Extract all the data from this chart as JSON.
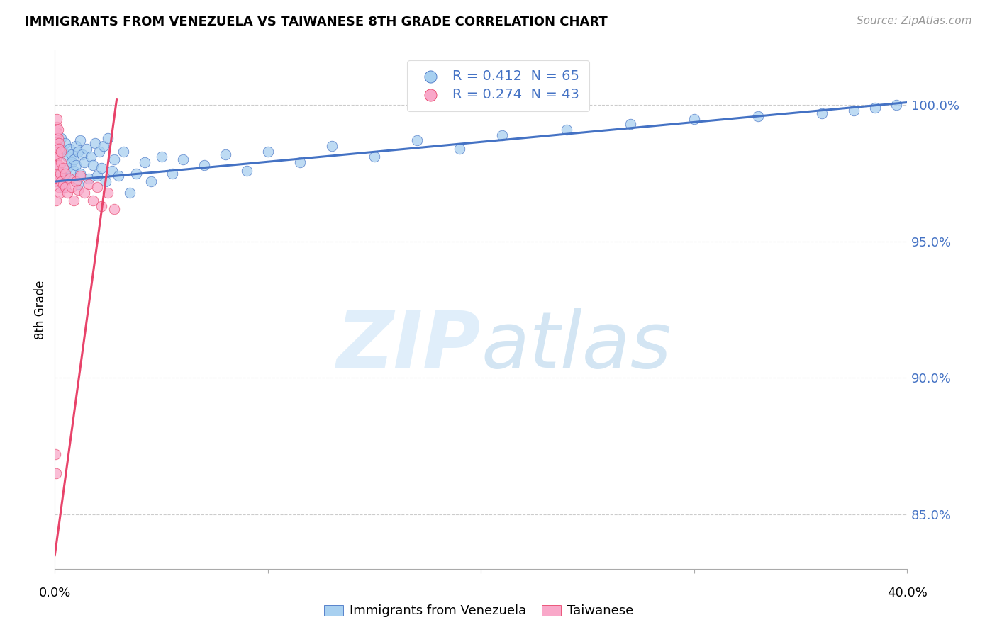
{
  "title": "IMMIGRANTS FROM VENEZUELA VS TAIWANESE 8TH GRADE CORRELATION CHART",
  "source": "Source: ZipAtlas.com",
  "ylabel": "8th Grade",
  "yticks": [
    85.0,
    90.0,
    95.0,
    100.0
  ],
  "ytick_labels": [
    "85.0%",
    "90.0%",
    "95.0%",
    "100.0%"
  ],
  "xlim": [
    0.0,
    0.4
  ],
  "ylim": [
    83.0,
    102.0
  ],
  "blue_r": 0.412,
  "blue_n": 65,
  "pink_r": 0.274,
  "pink_n": 43,
  "blue_color": "#A8D0F0",
  "pink_color": "#F9A8C9",
  "blue_line_color": "#4472C4",
  "pink_line_color": "#E8436A",
  "legend_label_blue": "Immigrants from Venezuela",
  "legend_label_pink": "Taiwanese",
  "blue_scatter_x": [
    0.001,
    0.002,
    0.002,
    0.003,
    0.003,
    0.004,
    0.004,
    0.005,
    0.005,
    0.006,
    0.006,
    0.007,
    0.007,
    0.008,
    0.008,
    0.009,
    0.009,
    0.01,
    0.01,
    0.011,
    0.011,
    0.012,
    0.012,
    0.013,
    0.014,
    0.015,
    0.016,
    0.017,
    0.018,
    0.019,
    0.02,
    0.021,
    0.022,
    0.023,
    0.024,
    0.025,
    0.027,
    0.028,
    0.03,
    0.032,
    0.035,
    0.038,
    0.042,
    0.045,
    0.05,
    0.055,
    0.06,
    0.07,
    0.08,
    0.09,
    0.1,
    0.115,
    0.13,
    0.15,
    0.17,
    0.19,
    0.21,
    0.24,
    0.27,
    0.3,
    0.33,
    0.36,
    0.375,
    0.385,
    0.395
  ],
  "blue_scatter_y": [
    97.8,
    98.5,
    97.2,
    98.8,
    97.5,
    98.3,
    97.0,
    98.6,
    97.4,
    98.1,
    97.7,
    98.4,
    97.3,
    98.2,
    97.9,
    98.0,
    97.6,
    98.5,
    97.8,
    98.3,
    97.1,
    98.7,
    97.5,
    98.2,
    97.9,
    98.4,
    97.3,
    98.1,
    97.8,
    98.6,
    97.4,
    98.3,
    97.7,
    98.5,
    97.2,
    98.8,
    97.6,
    98.0,
    97.4,
    98.3,
    96.8,
    97.5,
    97.9,
    97.2,
    98.1,
    97.5,
    98.0,
    97.8,
    98.2,
    97.6,
    98.3,
    97.9,
    98.5,
    98.1,
    98.7,
    98.4,
    98.9,
    99.1,
    99.3,
    99.5,
    99.6,
    99.7,
    99.8,
    99.9,
    100.0
  ],
  "pink_scatter_x": [
    0.0003,
    0.0004,
    0.0005,
    0.0006,
    0.0006,
    0.0007,
    0.0008,
    0.0009,
    0.001,
    0.001,
    0.001,
    0.0012,
    0.0013,
    0.0014,
    0.0015,
    0.0016,
    0.0018,
    0.002,
    0.002,
    0.002,
    0.0022,
    0.0025,
    0.003,
    0.003,
    0.003,
    0.004,
    0.004,
    0.005,
    0.005,
    0.006,
    0.007,
    0.008,
    0.009,
    0.01,
    0.011,
    0.012,
    0.014,
    0.016,
    0.018,
    0.02,
    0.022,
    0.025,
    0.028
  ],
  "pink_scatter_y": [
    87.2,
    86.5,
    96.5,
    97.2,
    98.0,
    98.8,
    99.2,
    99.5,
    97.8,
    98.5,
    99.0,
    98.2,
    97.5,
    98.8,
    99.1,
    97.3,
    98.6,
    97.0,
    97.8,
    98.4,
    96.8,
    97.5,
    97.2,
    97.9,
    98.3,
    97.1,
    97.7,
    97.0,
    97.5,
    96.8,
    97.3,
    97.0,
    96.5,
    97.2,
    96.9,
    97.4,
    96.8,
    97.1,
    96.5,
    97.0,
    96.3,
    96.8,
    96.2
  ],
  "blue_trend_x": [
    0.0,
    0.4
  ],
  "blue_trend_y": [
    97.2,
    100.1
  ],
  "pink_trend_x": [
    0.0,
    0.029
  ],
  "pink_trend_y": [
    83.5,
    100.2
  ]
}
